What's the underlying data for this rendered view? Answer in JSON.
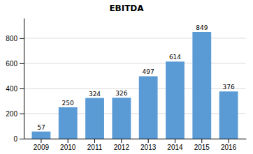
{
  "chart_data": {
    "type": "bar",
    "title": "EBITDA",
    "categories": [
      "2009",
      "2010",
      "2011",
      "2012",
      "2013",
      "2014",
      "2015",
      "2016"
    ],
    "values": [
      57,
      250,
      324,
      326,
      497,
      614,
      849,
      376
    ],
    "color": "#5B9BD5",
    "ylim": [
      0,
      960
    ],
    "yticks": [
      0,
      200,
      400,
      600,
      800
    ],
    "grid": true,
    "data_labels": true
  }
}
